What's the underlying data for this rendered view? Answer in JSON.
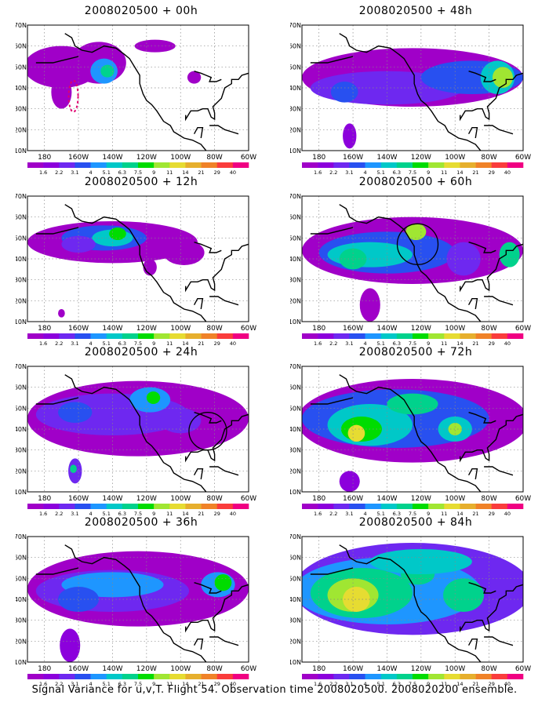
{
  "caption": "Signal Variance for u,v,T. Flight 54. Observation time 2008020500. 2008020200 ensemble.",
  "lon_labels": [
    "180",
    "160W",
    "140W",
    "120W",
    "100W",
    "80W",
    "60W"
  ],
  "lat_labels": [
    "70N",
    "60N",
    "50N",
    "40N",
    "30N",
    "20N",
    "10N"
  ],
  "legend": {
    "levels": [
      "1.6",
      "2.2",
      "3.1",
      "4",
      "5.1",
      "6.3",
      "7.5",
      "9",
      "11",
      "14",
      "21",
      "29",
      "40"
    ],
    "colors": [
      "#a000c8",
      "#8c00dc",
      "#6e28f0",
      "#2850f0",
      "#1e96ff",
      "#00c8c8",
      "#00d28c",
      "#00dc00",
      "#a0e632",
      "#e6dc32",
      "#e6af2d",
      "#f08228",
      "#fa3c3c",
      "#f00082"
    ]
  },
  "panels": [
    {
      "title": "2008020500 + 00h"
    },
    {
      "title": "2008020500 + 48h"
    },
    {
      "title": "2008020500 + 12h"
    },
    {
      "title": "2008020500 + 60h"
    },
    {
      "title": "2008020500 + 24h"
    },
    {
      "title": "2008020500 + 72h"
    },
    {
      "title": "2008020500 + 36h"
    },
    {
      "title": "2008020500 + 84h"
    }
  ]
}
